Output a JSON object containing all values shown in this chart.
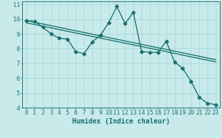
{
  "xlabel": "Humidex (Indice chaleur)",
  "bg_color": "#c8eaea",
  "line_color": "#1a7070",
  "grid_color": "#a8d8d8",
  "xlim": [
    -0.5,
    23.5
  ],
  "ylim": [
    4,
    11.2
  ],
  "xticks": [
    0,
    1,
    2,
    3,
    4,
    5,
    6,
    7,
    8,
    9,
    10,
    11,
    12,
    13,
    14,
    15,
    16,
    17,
    18,
    19,
    20,
    21,
    22,
    23
  ],
  "yticks": [
    4,
    5,
    6,
    7,
    8,
    9,
    10,
    11
  ],
  "main_x": [
    0,
    1,
    2,
    3,
    4,
    5,
    6,
    7,
    8,
    9,
    10,
    11,
    12,
    13,
    14,
    15,
    16,
    17,
    18,
    19,
    20,
    21,
    22,
    23
  ],
  "main_y": [
    9.9,
    9.85,
    9.45,
    9.0,
    8.7,
    8.65,
    7.8,
    7.65,
    8.45,
    8.9,
    9.75,
    10.85,
    9.7,
    10.45,
    7.8,
    7.75,
    7.75,
    8.5,
    7.1,
    6.65,
    5.8,
    4.7,
    4.3,
    4.2
  ],
  "trend1_x": [
    0,
    23
  ],
  "trend1_y": [
    9.9,
    7.25
  ],
  "trend2_x": [
    0,
    23
  ],
  "trend2_y": [
    9.75,
    7.1
  ],
  "marker": "D",
  "marker_size": 2.5,
  "line_width": 1.0,
  "xlabel_fontsize": 7,
  "tick_fontsize": 6
}
